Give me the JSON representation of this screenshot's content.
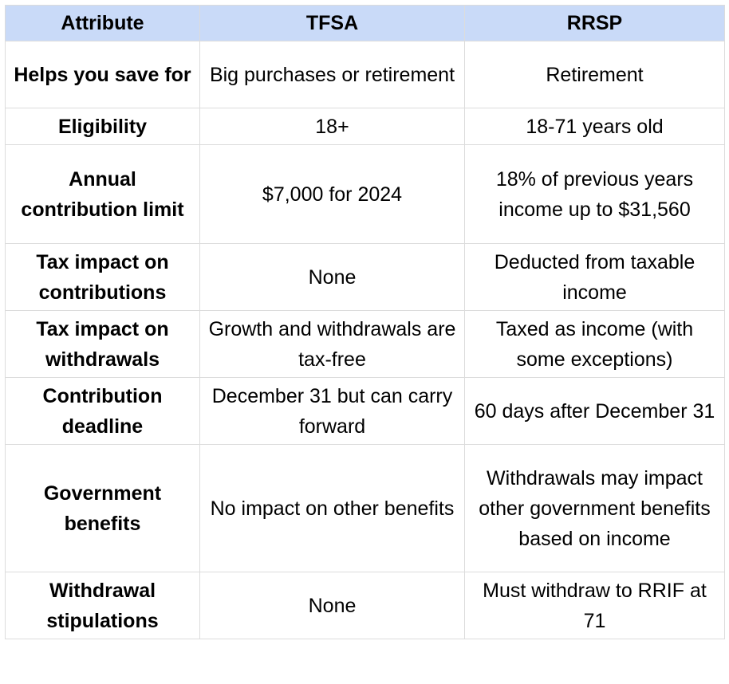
{
  "table": {
    "header": [
      "Attribute",
      "TFSA",
      "RRSP"
    ],
    "rows": [
      [
        "Helps you save for",
        "Big purchases or retirement",
        "Retirement"
      ],
      [
        "Eligibility",
        "18+",
        "18-71 years old"
      ],
      [
        "Annual contribution limit",
        "$7,000 for 2024",
        "18% of previous years income up to $31,560"
      ],
      [
        "Tax impact on contributions",
        "None",
        "Deducted from taxable income"
      ],
      [
        "Tax impact on withdrawals",
        "Growth and withdrawals are tax-free",
        "Taxed as income (with some exceptions)"
      ],
      [
        "Contribution deadline",
        "December 31 but can carry forward",
        "60 days after December 31"
      ],
      [
        "Government benefits",
        "No impact on other benefits",
        "Withdrawals may impact other government benefits based on income"
      ],
      [
        "Withdrawal stipulations",
        "None",
        "Must withdraw to RRIF at 71"
      ]
    ]
  }
}
